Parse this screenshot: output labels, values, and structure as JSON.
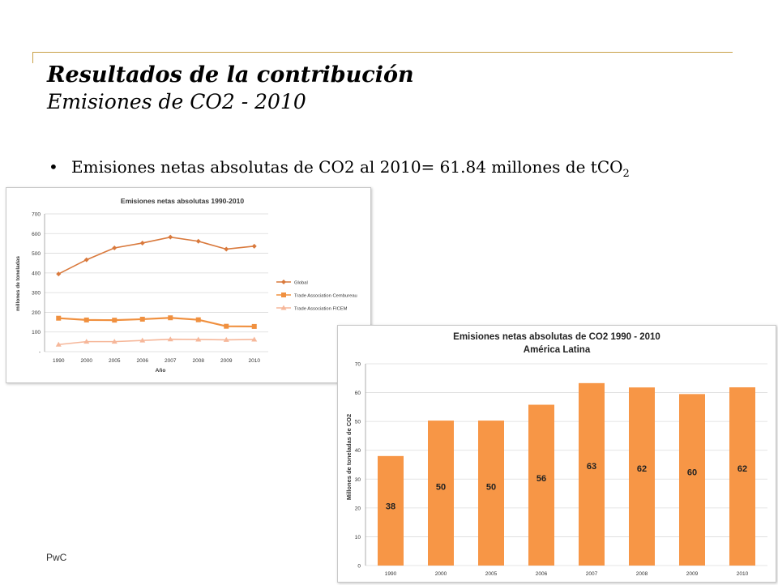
{
  "slide": {
    "title": "Resultados de la contribución",
    "subtitle": "Emisiones de CO2 - 2010",
    "bullet_text": "Emisiones netas absolutas de CO2 al 2010= 61.84  millones de tCO",
    "bullet_sub": "2",
    "footer": "PwC"
  },
  "colors": {
    "accent_rule": "#c8a046",
    "global": "#d9793c",
    "cembureau": "#f0903f",
    "ficem": "#f6b79a",
    "bar": "#f79646"
  },
  "chart_data": [
    {
      "type": "line",
      "title": "Emisiones netas absolutas 1990-2010",
      "xlabel": "Año",
      "ylabel": "millones de toneladas",
      "categories": [
        "1990",
        "2000",
        "2005",
        "2006",
        "2007",
        "2008",
        "2009",
        "2010"
      ],
      "ylim": [
        0,
        700
      ],
      "yticks": [
        "-",
        "100",
        "200",
        "300",
        "400",
        "500",
        "600",
        "700"
      ],
      "grid": true,
      "legend_position": "right",
      "series": [
        {
          "name": "Global",
          "marker": "diamond",
          "values": [
            395,
            467,
            527,
            552,
            582,
            561,
            521,
            536
          ]
        },
        {
          "name": "Trade Association Cembureau",
          "marker": "square",
          "values": [
            170,
            161,
            160,
            165,
            172,
            162,
            129,
            128
          ]
        },
        {
          "name": "Trade Association FICEM",
          "marker": "triangle",
          "values": [
            36,
            51,
            51,
            57,
            63,
            62,
            60,
            62
          ]
        }
      ]
    },
    {
      "type": "bar",
      "title": "Emisiones netas absolutas de CO2 1990 - 2010",
      "subtitle": "América Latina",
      "xlabel": "",
      "ylabel": "Millones de toneladas de CO2",
      "categories": [
        "1990",
        "2000",
        "2005",
        "2006",
        "2007",
        "2008",
        "2009",
        "2010"
      ],
      "values": [
        38,
        50.3,
        50.3,
        55.8,
        63.3,
        61.8,
        59.5,
        61.84
      ],
      "labels": [
        "38",
        "50",
        "50",
        "56",
        "63",
        "62",
        "60",
        "62"
      ],
      "ylim": [
        0,
        70
      ],
      "yticks": [
        "0",
        "10",
        "20",
        "30",
        "40",
        "50",
        "60",
        "70"
      ],
      "grid": true
    }
  ]
}
